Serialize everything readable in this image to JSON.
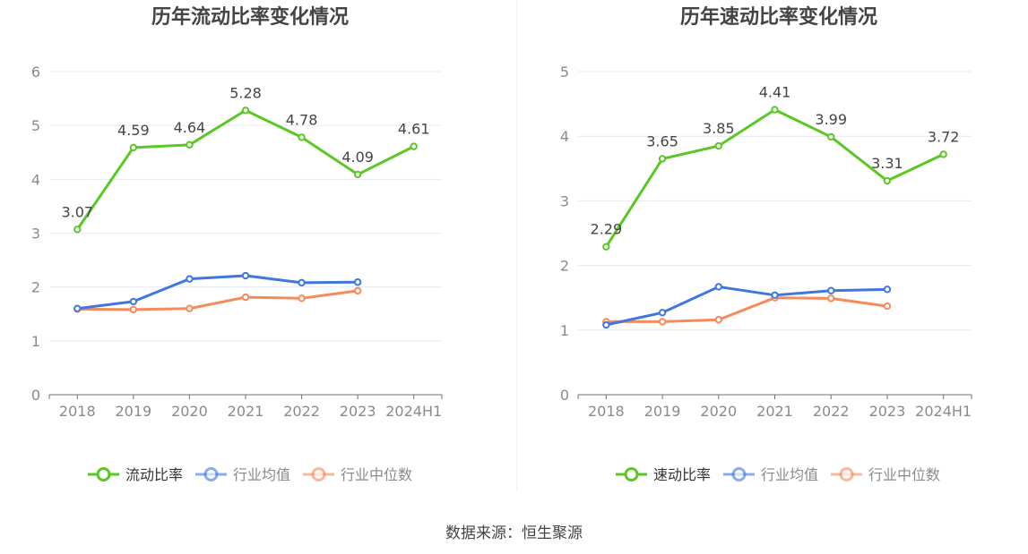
{
  "chart_data": [
    {
      "type": "line",
      "title": "历年流动比率变化情况",
      "categories": [
        "2018",
        "2019",
        "2020",
        "2021",
        "2022",
        "2023",
        "2024H1"
      ],
      "ylim": [
        0,
        6
      ],
      "yticks": [
        "0",
        "1",
        "2",
        "3",
        "4",
        "5",
        "6"
      ],
      "grid": true,
      "legend_position": "bottom",
      "series": [
        {
          "name": "流动比率",
          "color": "#5ac725",
          "values": [
            3.07,
            4.59,
            4.64,
            5.28,
            4.78,
            4.09,
            4.61
          ],
          "labels": [
            "3.07",
            "4.59",
            "4.64",
            "5.28",
            "4.78",
            "4.09",
            "4.61"
          ]
        },
        {
          "name": "行业均值",
          "color": "#3f76e0",
          "values": [
            1.6,
            1.73,
            2.15,
            2.21,
            2.08,
            2.09,
            null
          ]
        },
        {
          "name": "行业中位数",
          "color": "#f58a5b",
          "values": [
            1.59,
            1.58,
            1.6,
            1.81,
            1.79,
            1.93,
            null
          ]
        }
      ]
    },
    {
      "type": "line",
      "title": "历年速动比率变化情况",
      "categories": [
        "2018",
        "2019",
        "2020",
        "2021",
        "2022",
        "2023",
        "2024H1"
      ],
      "ylim": [
        0,
        5
      ],
      "yticks": [
        "0",
        "1",
        "2",
        "3",
        "4",
        "5"
      ],
      "grid": true,
      "legend_position": "bottom",
      "series": [
        {
          "name": "速动比率",
          "color": "#5ac725",
          "values": [
            2.29,
            3.65,
            3.85,
            4.41,
            3.99,
            3.31,
            3.72
          ],
          "labels": [
            "2.29",
            "3.65",
            "3.85",
            "4.41",
            "3.99",
            "3.31",
            "3.72"
          ]
        },
        {
          "name": "行业均值",
          "color": "#3f76e0",
          "values": [
            1.08,
            1.27,
            1.67,
            1.54,
            1.61,
            1.63,
            null
          ]
        },
        {
          "name": "行业中位数",
          "color": "#f58a5b",
          "values": [
            1.13,
            1.13,
            1.16,
            1.5,
            1.49,
            1.37,
            null
          ]
        }
      ]
    }
  ],
  "source": "数据来源：恒生聚源"
}
